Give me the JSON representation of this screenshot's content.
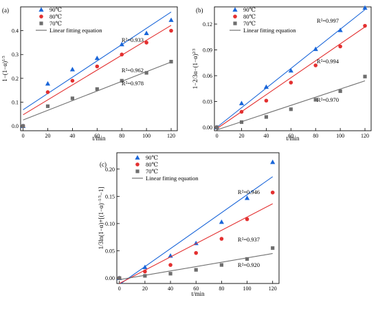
{
  "chart_data": [
    {
      "type": "scatter",
      "panel_label": "(a)",
      "xlabel": "t/min",
      "ylabel_parts": [
        "1−(1−α)",
        "1/3"
      ],
      "xlim": [
        -2,
        125
      ],
      "ylim": [
        -0.02,
        0.5
      ],
      "xticks": [
        0,
        20,
        40,
        60,
        80,
        100,
        120
      ],
      "yticks": [
        0.0,
        0.1,
        0.2,
        0.3,
        0.4
      ],
      "ytick_labels": [
        "0.0",
        "0.1",
        "0.2",
        "0.3",
        "0.4"
      ],
      "legend_position": "top-left",
      "legend": {
        "fit_label": "Linear fitting equation"
      },
      "series": [
        {
          "name": "90℃",
          "color": "#1a66d9",
          "marker": "triangle",
          "x": [
            0,
            20,
            40,
            60,
            80,
            100,
            120
          ],
          "y": [
            0.0,
            0.178,
            0.238,
            0.285,
            0.343,
            0.39,
            0.445
          ],
          "fit": {
            "intercept": 0.068,
            "slope": 0.00342,
            "r2_label": "R²=0.933"
          }
        },
        {
          "name": "80℃",
          "color": "#e33030",
          "marker": "circle",
          "x": [
            0,
            20,
            40,
            60,
            80,
            100,
            120
          ],
          "y": [
            0.0,
            0.142,
            0.19,
            0.25,
            0.3,
            0.35,
            0.4
          ],
          "fit": {
            "intercept": 0.047,
            "slope": 0.00313,
            "r2_label": "R²=0.962"
          }
        },
        {
          "name": "70℃",
          "color": "#6e6e6e",
          "marker": "square",
          "x": [
            0,
            20,
            40,
            60,
            80,
            100,
            120
          ],
          "y": [
            0.0,
            0.083,
            0.116,
            0.155,
            0.19,
            0.223,
            0.27
          ],
          "fit": {
            "intercept": 0.025,
            "slope": 0.00203,
            "r2_label": "R²=0.978"
          }
        }
      ]
    },
    {
      "type": "scatter",
      "panel_label": "(b)",
      "xlabel": "t/min",
      "ylabel_parts": [
        "1−2/3α−(1−α)",
        "2/3"
      ],
      "xlim": [
        -2,
        125
      ],
      "ylim": [
        -0.004,
        0.14
      ],
      "xticks": [
        0,
        20,
        40,
        60,
        80,
        100,
        120
      ],
      "yticks": [
        0.0,
        0.03,
        0.06,
        0.09,
        0.12
      ],
      "ytick_labels": [
        "0.00",
        "0.03",
        "0.06",
        "0.09",
        "0.12"
      ],
      "legend_position": "top-left",
      "legend": {
        "fit_label": "Linear fitting equation"
      },
      "series": [
        {
          "name": "90℃",
          "color": "#1a66d9",
          "marker": "triangle",
          "x": [
            0,
            20,
            40,
            60,
            80,
            100,
            120
          ],
          "y": [
            0.0,
            0.028,
            0.047,
            0.066,
            0.091,
            0.113,
            0.139
          ],
          "fit": {
            "intercept": 0.0,
            "slope": 0.00114,
            "r2_label": "R²=0.997"
          }
        },
        {
          "name": "80℃",
          "color": "#e33030",
          "marker": "circle",
          "x": [
            0,
            20,
            40,
            60,
            80,
            100,
            120
          ],
          "y": [
            0.0,
            0.018,
            0.031,
            0.052,
            0.072,
            0.094,
            0.118
          ],
          "fit": {
            "intercept": -0.0015,
            "slope": 0.000985,
            "r2_label": "R²=0.994"
          }
        },
        {
          "name": "70℃",
          "color": "#6e6e6e",
          "marker": "square",
          "x": [
            0,
            20,
            40,
            60,
            80,
            100,
            120
          ],
          "y": [
            0.0,
            0.006,
            0.012,
            0.021,
            0.032,
            0.042,
            0.059
          ],
          "fit": {
            "intercept": -0.003,
            "slope": 0.000475,
            "r2_label": "R²=0.970"
          }
        }
      ]
    },
    {
      "type": "scatter",
      "panel_label": "(c)",
      "xlabel": "t/min",
      "ylabel_parts": [
        "1/3ln(1−α)+[(1−α)",
        "−1/3",
        "−1]"
      ],
      "xlim": [
        -2,
        125
      ],
      "ylim": [
        -0.01,
        0.23
      ],
      "xticks": [
        0,
        20,
        40,
        60,
        80,
        100,
        120
      ],
      "yticks": [
        0.0,
        0.05,
        0.1,
        0.15,
        0.2
      ],
      "ytick_labels": [
        "0.00",
        "0.05",
        "0.10",
        "0.15",
        "0.20"
      ],
      "legend_position": "top-left",
      "legend": {
        "fit_label": "Linear fitting equation"
      },
      "series": [
        {
          "name": "90℃",
          "color": "#1a66d9",
          "marker": "triangle",
          "x": [
            0,
            20,
            40,
            60,
            80,
            100,
            120
          ],
          "y": [
            0.0,
            0.02,
            0.041,
            0.064,
            0.103,
            0.147,
            0.213
          ],
          "fit": {
            "intercept": -0.012,
            "slope": 0.00165,
            "r2_label": "R²=0.946"
          }
        },
        {
          "name": "80℃",
          "color": "#e33030",
          "marker": "circle",
          "x": [
            0,
            20,
            40,
            60,
            80,
            100,
            120
          ],
          "y": [
            0.0,
            0.012,
            0.024,
            0.046,
            0.072,
            0.108,
            0.157
          ],
          "fit": {
            "intercept": -0.01,
            "slope": 0.00122,
            "r2_label": "R²=0.937"
          }
        },
        {
          "name": "70℃",
          "color": "#6e6e6e",
          "marker": "square",
          "x": [
            0,
            20,
            40,
            60,
            80,
            100,
            120
          ],
          "y": [
            0.0,
            0.004,
            0.008,
            0.015,
            0.024,
            0.035,
            0.055
          ],
          "fit": {
            "intercept": -0.003,
            "slope": 0.0004,
            "r2_label": "R²=0.920"
          }
        }
      ]
    }
  ]
}
